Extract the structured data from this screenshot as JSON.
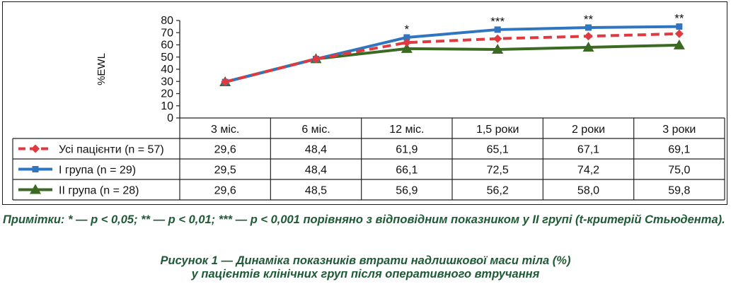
{
  "chart_data": {
    "type": "line",
    "ylabel": "%EWL",
    "xlabel": "",
    "ylim": [
      0,
      80
    ],
    "yticks": [
      0,
      10,
      20,
      30,
      40,
      50,
      60,
      70,
      80
    ],
    "grid": false,
    "legend": "table-left",
    "categories": [
      "3 міс.",
      "6 міс.",
      "12 міс.",
      "1,5 роки",
      "2 роки",
      "3 роки"
    ],
    "series": [
      {
        "name": "Усі пацієнти (n = 57)",
        "color": "#e03a40",
        "marker": "diamond",
        "dash": true,
        "values": [
          29.6,
          48.4,
          61.9,
          65.1,
          67.1,
          69.1
        ],
        "labels": [
          "29,6",
          "48,4",
          "61,9",
          "65,1",
          "67,1",
          "69,1"
        ]
      },
      {
        "name": "І група (n = 29)",
        "color": "#2f75c0",
        "marker": "square",
        "dash": false,
        "values": [
          29.5,
          48.4,
          66.1,
          72.5,
          74.2,
          75.0
        ],
        "labels": [
          "29,5",
          "48,4",
          "66,1",
          "72,5",
          "74,2",
          "75,0"
        ]
      },
      {
        "name": "ІІ група (n = 28)",
        "color": "#3b6a22",
        "marker": "triangle",
        "dash": false,
        "values": [
          29.6,
          48.5,
          56.9,
          56.2,
          58.0,
          59.8
        ],
        "labels": [
          "29,6",
          "48,5",
          "56,9",
          "56,2",
          "58,0",
          "59,8"
        ]
      }
    ],
    "annotations": [
      {
        "category_index": 2,
        "text": "*"
      },
      {
        "category_index": 3,
        "text": "***"
      },
      {
        "category_index": 4,
        "text": "**"
      },
      {
        "category_index": 5,
        "text": "**"
      }
    ]
  },
  "note": "Примітки: * — р < 0,05; ** — р < 0,01; *** — р < 0,001 порівняно з відповідним показником у ІІ групі (t-критерій Стьюдента).",
  "caption_line1": "Рисунок 1 — Динаміка показників втрати надлишкової маси тіла (%)",
  "caption_line2": "у пацієнтів клінічних груп після оперативного втручання"
}
